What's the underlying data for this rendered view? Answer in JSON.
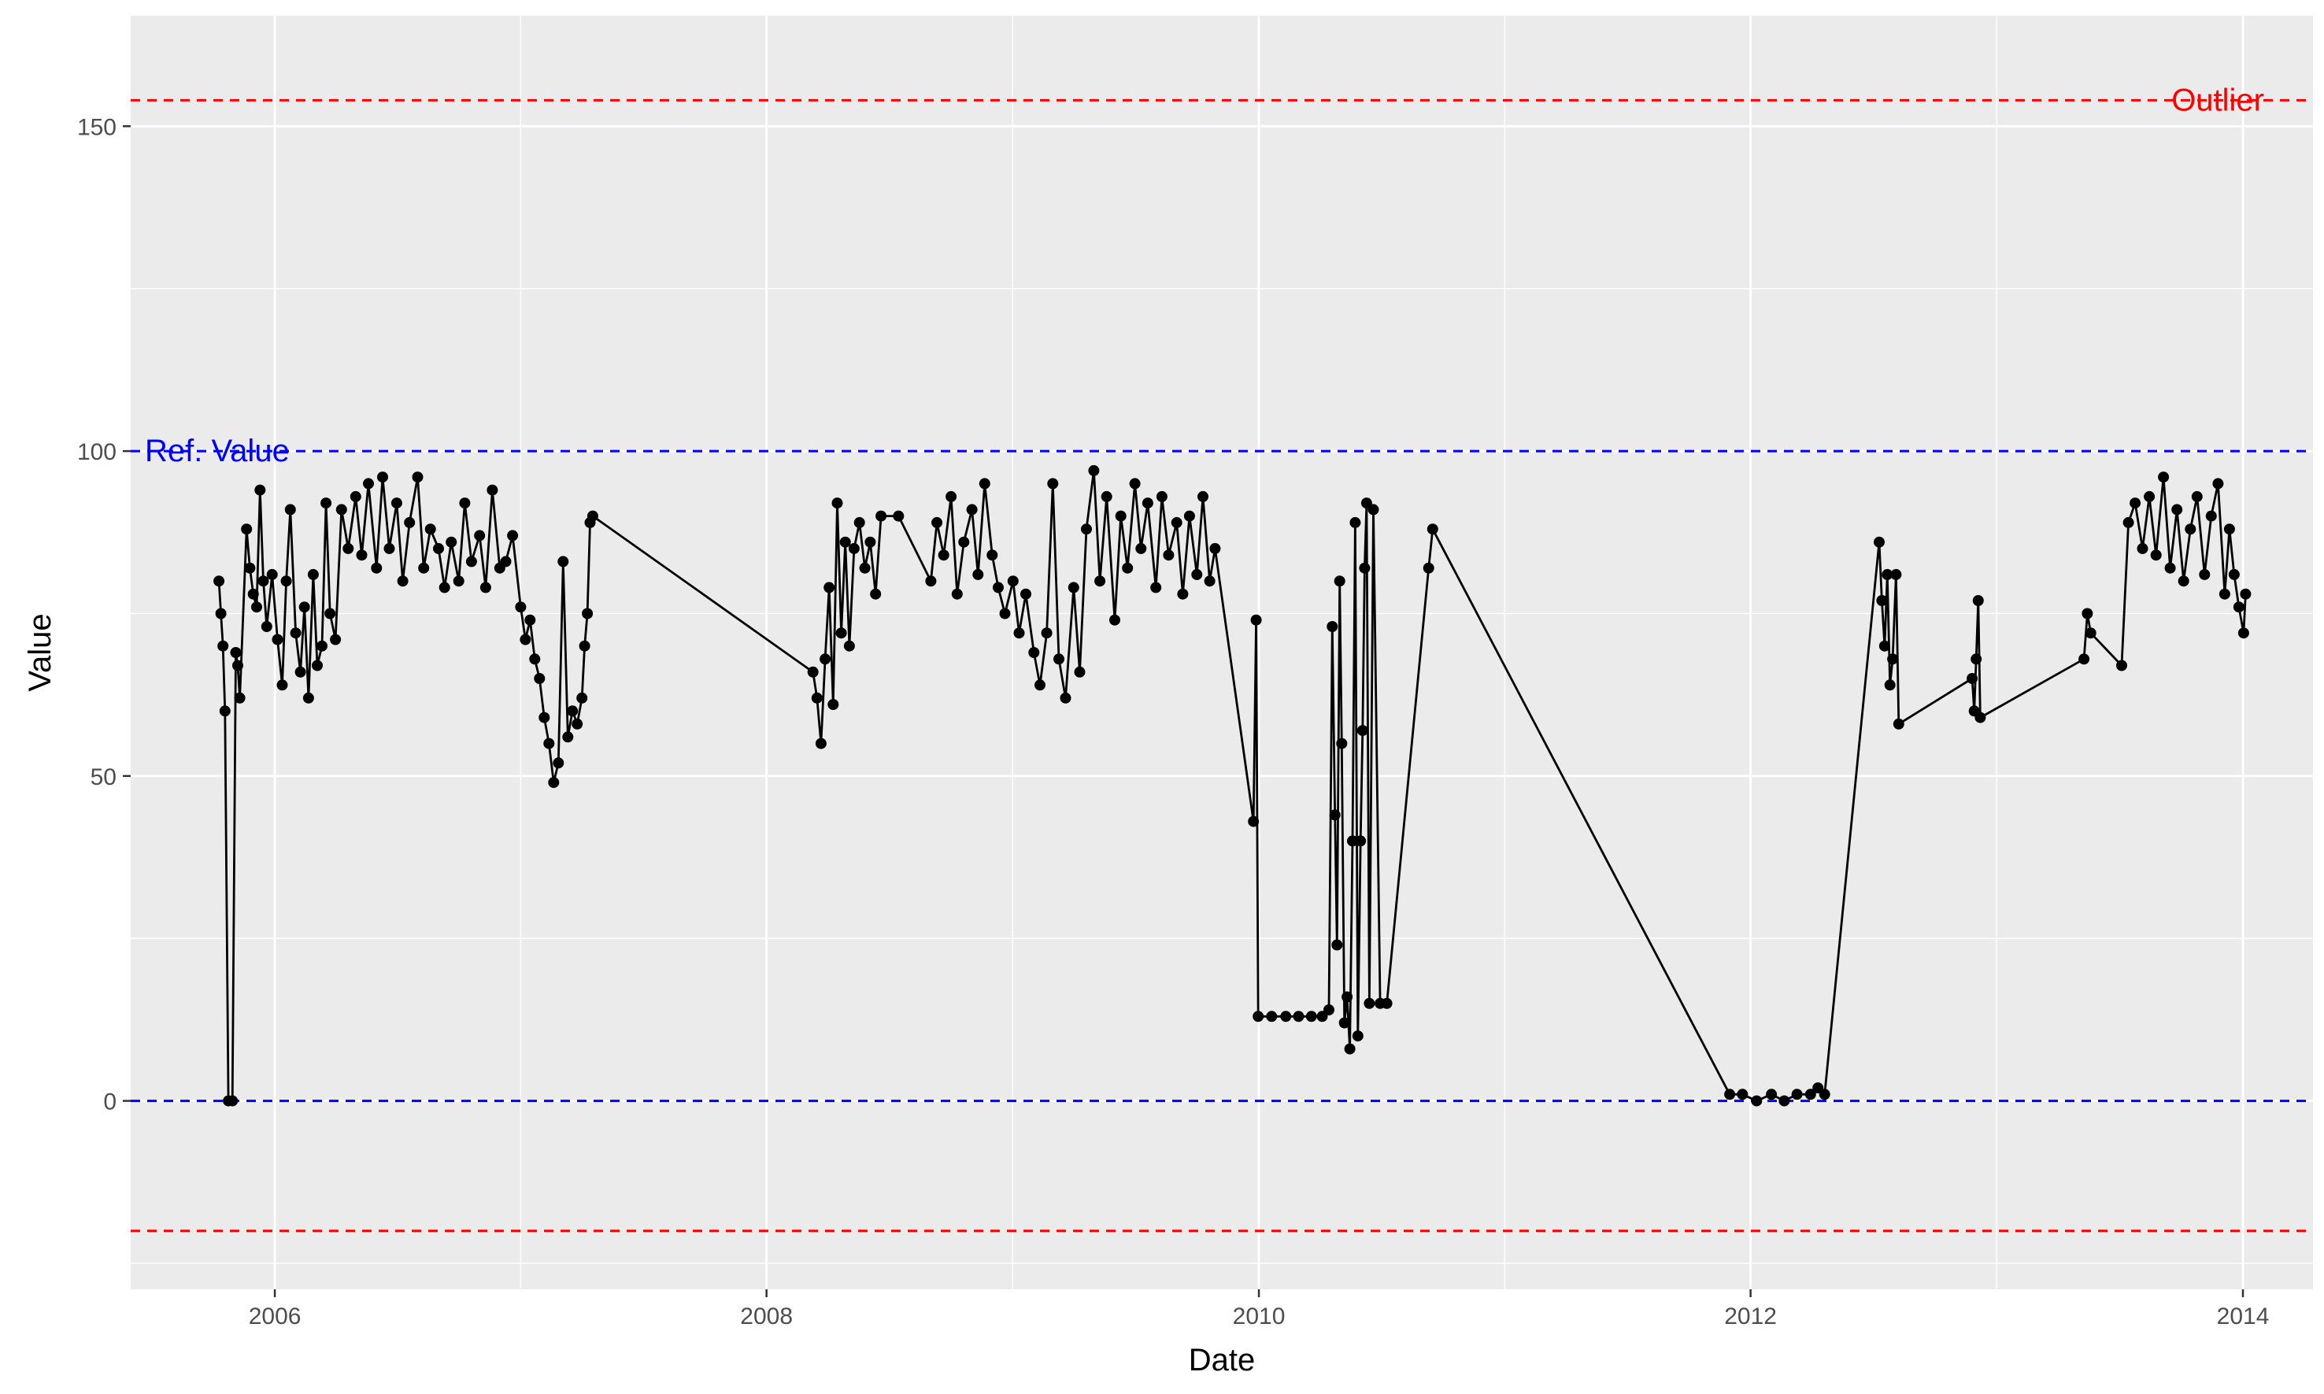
{
  "chart_data": {
    "type": "line",
    "xlabel": "Date",
    "ylabel": "Value",
    "xlim": [
      "2005-06-01",
      "2014-04-15"
    ],
    "ylim": [
      -29,
      167
    ],
    "x_ticks": [
      "2006-01-01",
      "2008-01-01",
      "2010-01-01",
      "2012-01-01",
      "2014-01-01"
    ],
    "x_tick_labels": [
      "2006",
      "2008",
      "2010",
      "2012",
      "2014"
    ],
    "y_ticks": [
      0,
      50,
      100,
      150
    ],
    "y_tick_labels": [
      "0",
      "50",
      "100",
      "150"
    ],
    "grid": true,
    "reference_lines": [
      {
        "y": 154,
        "color": "#ff0000",
        "style": "dashed",
        "label": "Outlier",
        "label_position": "right"
      },
      {
        "y": 100,
        "color": "#0000ff",
        "style": "dashed",
        "label": "Ref. Value",
        "label_position": "left"
      },
      {
        "y": 0,
        "color": "#0000ff",
        "style": "dashed",
        "label": "",
        "label_position": ""
      },
      {
        "y": -20,
        "color": "#ff0000",
        "style": "dashed",
        "label": "",
        "label_position": ""
      }
    ],
    "series": [
      {
        "values": [
          [
            "2005-10-10",
            80
          ],
          [
            "2005-10-13",
            75
          ],
          [
            "2005-10-16",
            70
          ],
          [
            "2005-10-19",
            60
          ],
          [
            "2005-10-24",
            0
          ],
          [
            "2005-10-30",
            0
          ],
          [
            "2005-11-04",
            69
          ],
          [
            "2005-11-07",
            67
          ],
          [
            "2005-11-10",
            62
          ],
          [
            "2005-11-20",
            88
          ],
          [
            "2005-11-25",
            82
          ],
          [
            "2005-11-30",
            78
          ],
          [
            "2005-12-05",
            76
          ],
          [
            "2005-12-10",
            94
          ],
          [
            "2005-12-15",
            80
          ],
          [
            "2005-12-20",
            73
          ],
          [
            "2005-12-28",
            81
          ],
          [
            "2006-01-05",
            71
          ],
          [
            "2006-01-12",
            64
          ],
          [
            "2006-01-18",
            80
          ],
          [
            "2006-01-24",
            91
          ],
          [
            "2006-02-01",
            72
          ],
          [
            "2006-02-08",
            66
          ],
          [
            "2006-02-14",
            76
          ],
          [
            "2006-02-20",
            62
          ],
          [
            "2006-02-27",
            81
          ],
          [
            "2006-03-05",
            67
          ],
          [
            "2006-03-12",
            70
          ],
          [
            "2006-03-18",
            92
          ],
          [
            "2006-03-24",
            75
          ],
          [
            "2006-04-01",
            71
          ],
          [
            "2006-04-10",
            91
          ],
          [
            "2006-04-20",
            85
          ],
          [
            "2006-05-01",
            93
          ],
          [
            "2006-05-10",
            84
          ],
          [
            "2006-05-20",
            95
          ],
          [
            "2006-06-01",
            82
          ],
          [
            "2006-06-10",
            96
          ],
          [
            "2006-06-20",
            85
          ],
          [
            "2006-07-01",
            92
          ],
          [
            "2006-07-10",
            80
          ],
          [
            "2006-07-20",
            89
          ],
          [
            "2006-08-01",
            96
          ],
          [
            "2006-08-10",
            82
          ],
          [
            "2006-08-20",
            88
          ],
          [
            "2006-09-01",
            85
          ],
          [
            "2006-09-10",
            79
          ],
          [
            "2006-09-20",
            86
          ],
          [
            "2006-10-01",
            80
          ],
          [
            "2006-10-10",
            92
          ],
          [
            "2006-10-20",
            83
          ],
          [
            "2006-11-01",
            87
          ],
          [
            "2006-11-10",
            79
          ],
          [
            "2006-11-20",
            94
          ],
          [
            "2006-12-01",
            82
          ],
          [
            "2006-12-10",
            83
          ],
          [
            "2006-12-20",
            87
          ],
          [
            "2007-01-01",
            76
          ],
          [
            "2007-01-08",
            71
          ],
          [
            "2007-01-15",
            74
          ],
          [
            "2007-01-22",
            68
          ],
          [
            "2007-01-29",
            65
          ],
          [
            "2007-02-05",
            59
          ],
          [
            "2007-02-12",
            55
          ],
          [
            "2007-02-19",
            49
          ],
          [
            "2007-02-26",
            52
          ],
          [
            "2007-03-05",
            83
          ],
          [
            "2007-03-12",
            56
          ],
          [
            "2007-03-19",
            60
          ],
          [
            "2007-03-26",
            58
          ],
          [
            "2007-04-02",
            62
          ],
          [
            "2007-04-06",
            70
          ],
          [
            "2007-04-10",
            75
          ],
          [
            "2007-04-14",
            89
          ],
          [
            "2007-04-18",
            90
          ],
          [
            "2008-03-10",
            66
          ],
          [
            "2008-03-16",
            62
          ],
          [
            "2008-03-22",
            55
          ],
          [
            "2008-03-28",
            68
          ],
          [
            "2008-04-03",
            79
          ],
          [
            "2008-04-09",
            61
          ],
          [
            "2008-04-15",
            92
          ],
          [
            "2008-04-21",
            72
          ],
          [
            "2008-04-27",
            86
          ],
          [
            "2008-05-03",
            70
          ],
          [
            "2008-05-10",
            85
          ],
          [
            "2008-05-18",
            89
          ],
          [
            "2008-05-26",
            82
          ],
          [
            "2008-06-03",
            86
          ],
          [
            "2008-06-11",
            78
          ],
          [
            "2008-06-19",
            90
          ],
          [
            "2008-07-15",
            90
          ],
          [
            "2008-09-01",
            80
          ],
          [
            "2008-09-10",
            89
          ],
          [
            "2008-09-20",
            84
          ],
          [
            "2008-10-01",
            93
          ],
          [
            "2008-10-10",
            78
          ],
          [
            "2008-10-20",
            86
          ],
          [
            "2008-11-01",
            91
          ],
          [
            "2008-11-10",
            81
          ],
          [
            "2008-11-20",
            95
          ],
          [
            "2008-12-01",
            84
          ],
          [
            "2008-12-10",
            79
          ],
          [
            "2008-12-20",
            75
          ],
          [
            "2009-01-01",
            80
          ],
          [
            "2009-01-10",
            72
          ],
          [
            "2009-01-20",
            78
          ],
          [
            "2009-02-01",
            69
          ],
          [
            "2009-02-10",
            64
          ],
          [
            "2009-02-20",
            72
          ],
          [
            "2009-03-01",
            95
          ],
          [
            "2009-03-10",
            68
          ],
          [
            "2009-03-20",
            62
          ],
          [
            "2009-04-01",
            79
          ],
          [
            "2009-04-10",
            66
          ],
          [
            "2009-04-20",
            88
          ],
          [
            "2009-05-01",
            97
          ],
          [
            "2009-05-10",
            80
          ],
          [
            "2009-05-20",
            93
          ],
          [
            "2009-06-01",
            74
          ],
          [
            "2009-06-10",
            90
          ],
          [
            "2009-06-20",
            82
          ],
          [
            "2009-07-01",
            95
          ],
          [
            "2009-07-10",
            85
          ],
          [
            "2009-07-20",
            92
          ],
          [
            "2009-08-01",
            79
          ],
          [
            "2009-08-10",
            93
          ],
          [
            "2009-08-20",
            84
          ],
          [
            "2009-09-01",
            89
          ],
          [
            "2009-09-10",
            78
          ],
          [
            "2009-09-20",
            90
          ],
          [
            "2009-10-01",
            81
          ],
          [
            "2009-10-10",
            93
          ],
          [
            "2009-10-20",
            80
          ],
          [
            "2009-10-28",
            85
          ],
          [
            "2009-12-24",
            43
          ],
          [
            "2009-12-28",
            74
          ],
          [
            "2009-12-31",
            13
          ],
          [
            "2010-01-20",
            13
          ],
          [
            "2010-02-10",
            13
          ],
          [
            "2010-03-01",
            13
          ],
          [
            "2010-03-20",
            13
          ],
          [
            "2010-04-05",
            13
          ],
          [
            "2010-04-15",
            14
          ],
          [
            "2010-04-20",
            73
          ],
          [
            "2010-04-24",
            44
          ],
          [
            "2010-04-27",
            24
          ],
          [
            "2010-05-01",
            80
          ],
          [
            "2010-05-04",
            55
          ],
          [
            "2010-05-08",
            12
          ],
          [
            "2010-05-12",
            16
          ],
          [
            "2010-05-16",
            8
          ],
          [
            "2010-05-20",
            40
          ],
          [
            "2010-05-24",
            89
          ],
          [
            "2010-05-28",
            10
          ],
          [
            "2010-06-01",
            40
          ],
          [
            "2010-06-04",
            57
          ],
          [
            "2010-06-07",
            82
          ],
          [
            "2010-06-10",
            92
          ],
          [
            "2010-06-14",
            15
          ],
          [
            "2010-06-20",
            91
          ],
          [
            "2010-06-30",
            15
          ],
          [
            "2010-07-10",
            15
          ],
          [
            "2010-09-10",
            82
          ],
          [
            "2010-09-16",
            88
          ],
          [
            "2011-12-01",
            1
          ],
          [
            "2011-12-20",
            1
          ],
          [
            "2012-01-10",
            0
          ],
          [
            "2012-02-01",
            1
          ],
          [
            "2012-02-20",
            0
          ],
          [
            "2012-03-10",
            1
          ],
          [
            "2012-03-30",
            1
          ],
          [
            "2012-04-10",
            2
          ],
          [
            "2012-04-20",
            1
          ],
          [
            "2012-07-10",
            86
          ],
          [
            "2012-07-14",
            77
          ],
          [
            "2012-07-18",
            70
          ],
          [
            "2012-07-22",
            81
          ],
          [
            "2012-07-26",
            64
          ],
          [
            "2012-07-30",
            68
          ],
          [
            "2012-08-04",
            81
          ],
          [
            "2012-08-08",
            58
          ],
          [
            "2012-11-25",
            65
          ],
          [
            "2012-11-28",
            60
          ],
          [
            "2012-12-01",
            68
          ],
          [
            "2012-12-04",
            77
          ],
          [
            "2012-12-07",
            59
          ],
          [
            "2013-05-10",
            68
          ],
          [
            "2013-05-15",
            75
          ],
          [
            "2013-05-20",
            72
          ],
          [
            "2013-07-05",
            67
          ],
          [
            "2013-07-15",
            89
          ],
          [
            "2013-07-25",
            92
          ],
          [
            "2013-08-05",
            85
          ],
          [
            "2013-08-15",
            93
          ],
          [
            "2013-08-25",
            84
          ],
          [
            "2013-09-05",
            96
          ],
          [
            "2013-09-15",
            82
          ],
          [
            "2013-09-25",
            91
          ],
          [
            "2013-10-05",
            80
          ],
          [
            "2013-10-15",
            88
          ],
          [
            "2013-10-25",
            93
          ],
          [
            "2013-11-05",
            81
          ],
          [
            "2013-11-15",
            90
          ],
          [
            "2013-11-25",
            95
          ],
          [
            "2013-12-05",
            78
          ],
          [
            "2013-12-12",
            88
          ],
          [
            "2013-12-19",
            81
          ],
          [
            "2013-12-26",
            76
          ],
          [
            "2014-01-02",
            72
          ],
          [
            "2014-01-05",
            78
          ]
        ]
      }
    ]
  }
}
